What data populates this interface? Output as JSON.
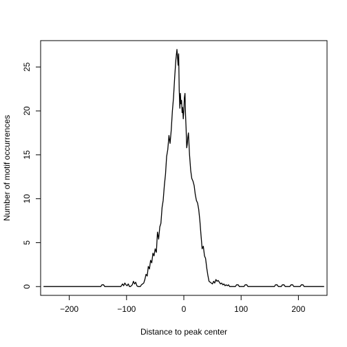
{
  "chart_data": {
    "type": "line",
    "title": "",
    "xlabel": "Distance to peak center",
    "ylabel": "Number of motif occurrences",
    "xlim": [
      -250,
      250
    ],
    "ylim": [
      -1,
      28
    ],
    "xticks": [
      -200,
      -100,
      0,
      100,
      200
    ],
    "xtick_labels": [
      "−200",
      "−100",
      "0",
      "100",
      "200"
    ],
    "yticks": [
      0,
      5,
      10,
      15,
      20,
      25
    ],
    "ytick_labels": [
      "0",
      "5",
      "10",
      "15",
      "20",
      "25"
    ],
    "grid": false,
    "legend": "none",
    "series": [
      {
        "color": "#000000",
        "x": [
          -245,
          -145,
          -143,
          -140,
          -138,
          -110,
          -107,
          -105,
          -103,
          -101,
          -99,
          -97,
          -95,
          -93,
          -90,
          -88,
          -86,
          -84,
          -82,
          -80,
          -78,
          -76,
          -74,
          -72,
          -70,
          -68,
          -66,
          -64,
          -62,
          -60,
          -58,
          -56,
          -54,
          -52,
          -50,
          -48,
          -46,
          -44,
          -42,
          -40,
          -38,
          -36,
          -34,
          -32,
          -30,
          -28,
          -26,
          -24,
          -22,
          -20,
          -18,
          -16,
          -14,
          -12,
          -10,
          -9,
          -8,
          -7,
          -6,
          -5,
          -4,
          -3,
          -2,
          -1,
          0,
          1,
          2,
          3,
          4,
          5,
          6,
          7,
          8,
          10,
          12,
          14,
          16,
          18,
          20,
          22,
          24,
          26,
          28,
          30,
          32,
          34,
          36,
          38,
          40,
          42,
          44,
          46,
          48,
          50,
          52,
          54,
          56,
          58,
          60,
          62,
          64,
          66,
          68,
          70,
          72,
          74,
          76,
          78,
          80,
          90,
          92,
          95,
          97,
          105,
          107,
          110,
          112,
          158,
          160,
          163,
          165,
          170,
          172,
          175,
          177,
          185,
          187,
          190,
          192,
          203,
          205,
          208,
          210,
          245
        ],
        "values": [
          0,
          0,
          0.2,
          0.2,
          0,
          0,
          0.3,
          0.1,
          0.4,
          0.2,
          0.1,
          0.3,
          0,
          0,
          0.2,
          0.6,
          0.3,
          0.5,
          0.1,
          0,
          0,
          0,
          0.2,
          0.3,
          0.4,
          0.8,
          1.4,
          1.2,
          2.3,
          2.0,
          3.0,
          2.7,
          3.8,
          3.5,
          4.3,
          3.9,
          6.2,
          5.4,
          6.8,
          7.2,
          9.0,
          9.8,
          11.5,
          12.8,
          14.8,
          15.6,
          17.2,
          16.3,
          17.8,
          20.0,
          21.5,
          23.8,
          25.8,
          27.0,
          25.2,
          26.5,
          22.4,
          20.3,
          22.0,
          20.8,
          21.2,
          19.8,
          20.4,
          19.1,
          20.0,
          21.5,
          22.0,
          19.5,
          18.0,
          15.8,
          16.2,
          17.0,
          17.5,
          15.0,
          13.2,
          12.3,
          12.0,
          11.5,
          10.5,
          9.8,
          9.5,
          8.8,
          7.5,
          5.8,
          4.3,
          4.6,
          3.5,
          3.2,
          2.1,
          1.3,
          0.6,
          0.5,
          0.4,
          0.3,
          0.6,
          0.4,
          0.8,
          0.6,
          0.7,
          0.5,
          0.3,
          0.4,
          0.2,
          0.3,
          0.1,
          0.2,
          0.1,
          0.2,
          0,
          0,
          0.2,
          0.2,
          0,
          0,
          0.2,
          0.2,
          0,
          0,
          0.2,
          0.2,
          0,
          0,
          0.2,
          0.2,
          0,
          0,
          0.2,
          0.2,
          0,
          0,
          0.2,
          0.2,
          0,
          0
        ]
      }
    ]
  }
}
